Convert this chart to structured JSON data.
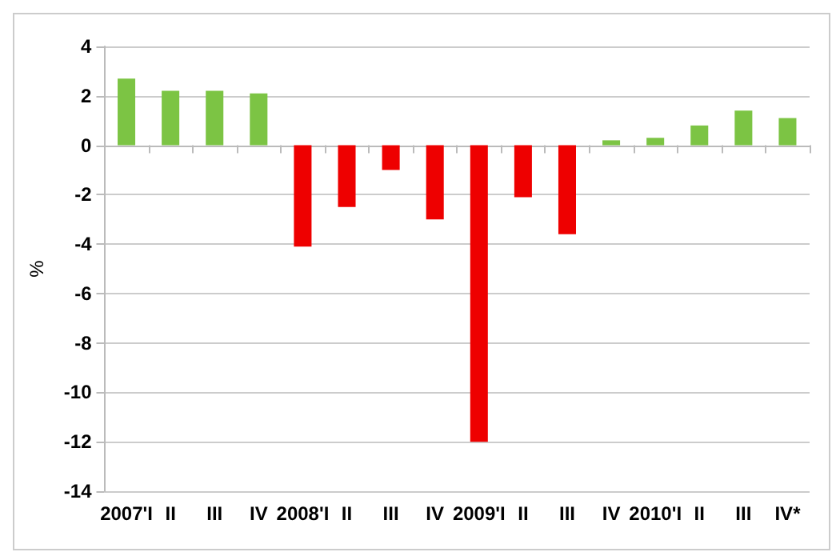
{
  "chart_data": {
    "type": "bar",
    "ylabel": "%",
    "categories": [
      "2007'I",
      "II",
      "III",
      "IV",
      "2008'I",
      "II",
      "III",
      "IV",
      "2009'I",
      "II",
      "III",
      "IV",
      "2010'I",
      "II",
      "III",
      "IV*"
    ],
    "values": [
      2.7,
      2.2,
      2.2,
      2.1,
      -4.1,
      -2.5,
      -1.0,
      -3.0,
      -12.0,
      -2.1,
      -3.6,
      0.2,
      0.3,
      0.8,
      1.4,
      1.1
    ],
    "colors": [
      "#7cc444",
      "#7cc444",
      "#7cc444",
      "#7cc444",
      "#ee0000",
      "#ee0000",
      "#ee0000",
      "#ee0000",
      "#ee0000",
      "#ee0000",
      "#ee0000",
      "#7cc444",
      "#7cc444",
      "#7cc444",
      "#7cc444",
      "#7cc444"
    ],
    "ylim": [
      -14,
      4
    ],
    "yticks": [
      -14,
      -12,
      -10,
      -8,
      -6,
      -4,
      -2,
      0,
      2,
      4
    ],
    "grid": "y"
  }
}
